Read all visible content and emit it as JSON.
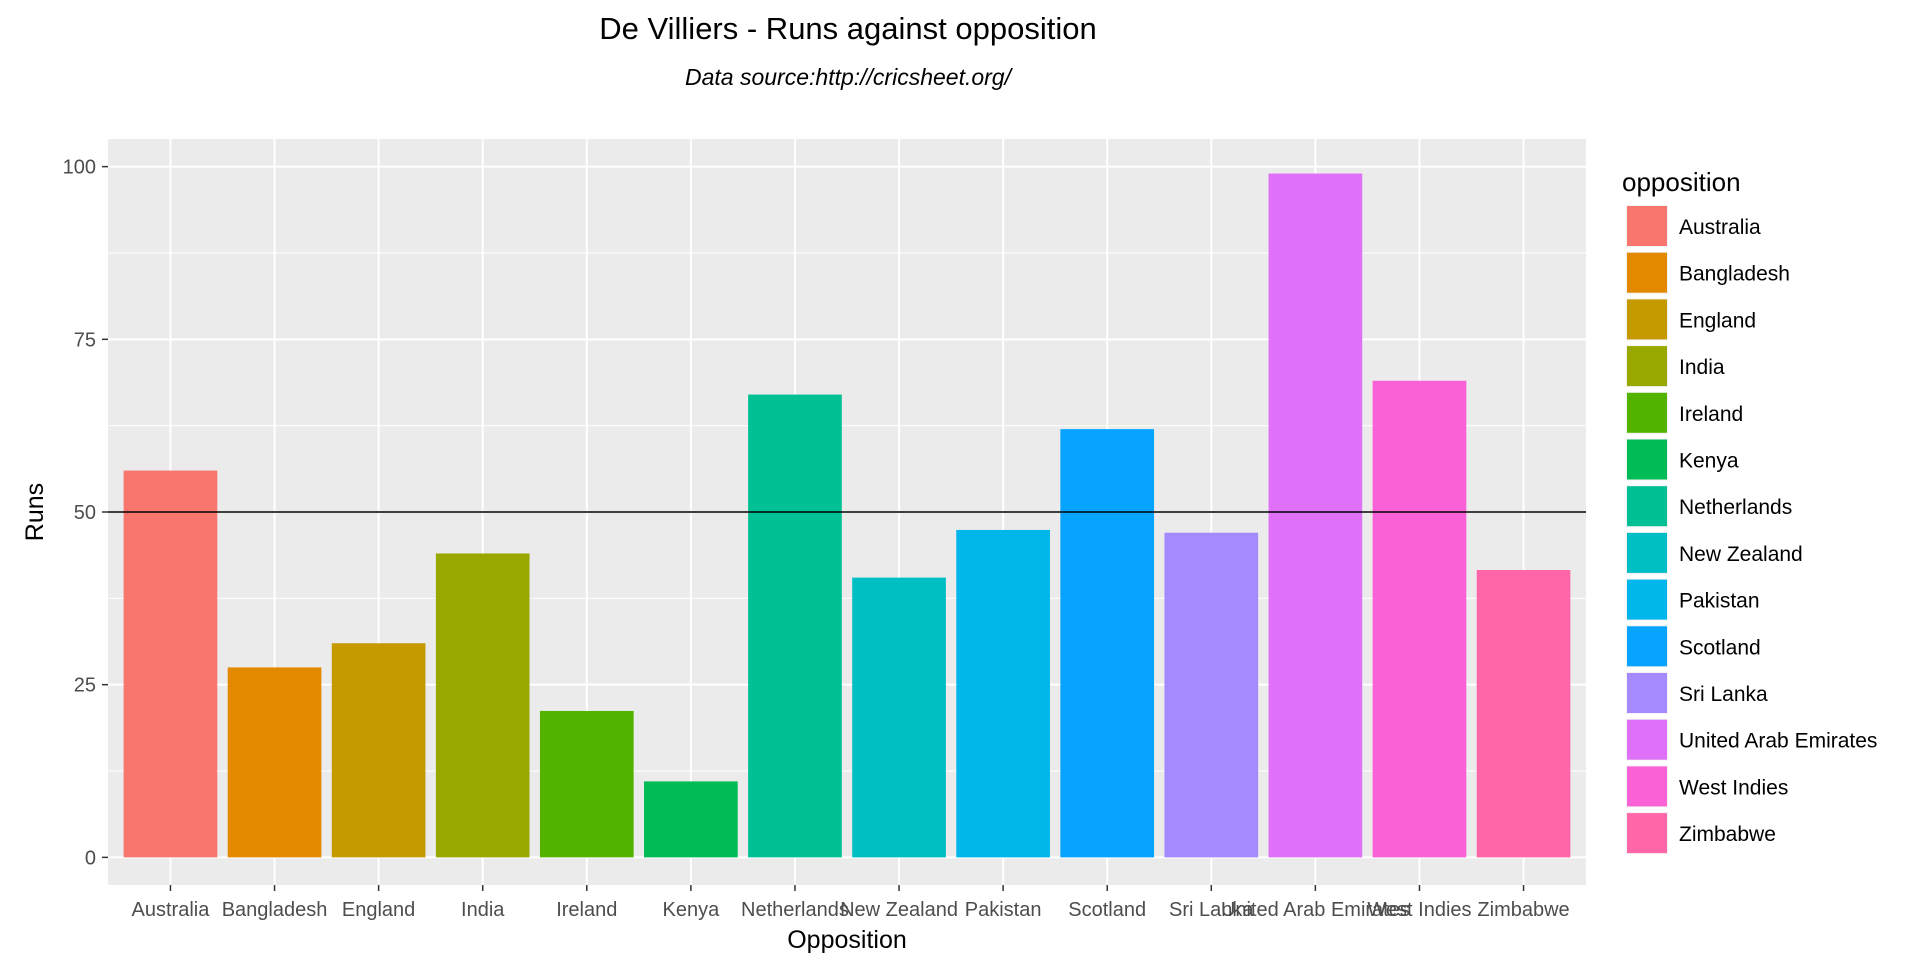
{
  "chart_data": {
    "type": "bar",
    "title": "De Villiers - Runs against opposition",
    "subtitle": "Data source:http://cricsheet.org/",
    "xlabel": "Opposition",
    "ylabel": "Runs",
    "ylim": [
      -4,
      104
    ],
    "yticks": [
      0,
      25,
      50,
      75,
      100
    ],
    "grid": true,
    "reference_line": 50,
    "legend": {
      "title": "opposition",
      "placement": "right"
    },
    "categories": [
      "Australia",
      "Bangladesh",
      "England",
      "India",
      "Ireland",
      "Kenya",
      "Netherlands",
      "New Zealand",
      "Pakistan",
      "Scotland",
      "Sri Lanka",
      "United Arab Emirates",
      "West Indies",
      "Zimbabwe"
    ],
    "values": [
      56,
      27.5,
      31,
      44,
      21.2,
      11,
      67,
      40.5,
      47.4,
      62,
      47,
      99,
      69,
      41.6
    ],
    "colors": [
      "#F8766D",
      "#E38900",
      "#C49A00",
      "#99A800",
      "#53B400",
      "#00BC56",
      "#00C094",
      "#00BFC4",
      "#00B6EB",
      "#06A4FF",
      "#A58AFF",
      "#DF70F8",
      "#FB61D7",
      "#FF66A8"
    ]
  }
}
